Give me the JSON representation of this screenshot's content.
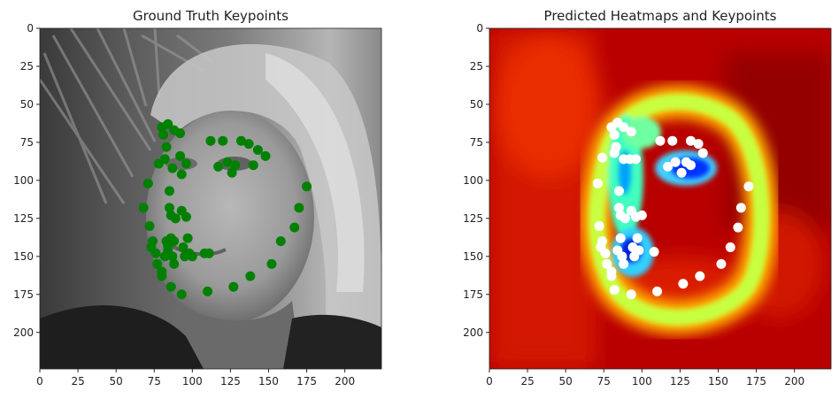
{
  "figure": {
    "titles": [
      "Ground Truth Keypoints",
      "Predicted Heatmaps and Keypoints"
    ]
  },
  "chart_data": [
    {
      "type": "scatter",
      "title": "Ground Truth Keypoints",
      "xlim": [
        0,
        224
      ],
      "ylim": [
        224,
        0
      ],
      "xticks": [
        0,
        25,
        50,
        75,
        100,
        125,
        150,
        175,
        200
      ],
      "yticks": [
        0,
        25,
        50,
        75,
        100,
        125,
        150,
        175,
        200
      ],
      "background": "grayscale face photo",
      "marker_color": "#008000",
      "series": [
        {
          "points": [
            [
              68,
              118
            ],
            [
              71,
              102
            ],
            [
              72,
              130
            ],
            [
              73,
              144
            ],
            [
              74,
              140
            ],
            [
              76,
              148
            ],
            [
              77,
              155
            ],
            [
              78,
              89
            ],
            [
              80,
              160
            ],
            [
              80,
              65
            ],
            [
              81,
              70
            ],
            [
              82,
              86
            ],
            [
              83,
              140
            ],
            [
              84,
              63
            ],
            [
              83,
              78
            ],
            [
              84,
              146
            ],
            [
              85,
              107
            ],
            [
              85,
              118
            ],
            [
              86,
              123
            ],
            [
              86,
              138
            ],
            [
              87,
              92
            ],
            [
              89,
              125
            ],
            [
              88,
              67
            ],
            [
              87,
              150
            ],
            [
              88,
              155
            ],
            [
              92,
              69
            ],
            [
              92,
              84
            ],
            [
              93,
              96
            ],
            [
              93,
              120
            ],
            [
              96,
              124
            ],
            [
              97,
              138
            ],
            [
              98,
              148
            ],
            [
              94,
              144
            ],
            [
              95,
              150
            ],
            [
              100,
              150
            ],
            [
              96,
              89
            ],
            [
              82,
              150
            ],
            [
              84,
              143
            ],
            [
              88,
              140
            ],
            [
              86,
              170
            ],
            [
              80,
              163
            ],
            [
              93,
              175
            ],
            [
              108,
              148
            ],
            [
              111,
              148
            ],
            [
              110,
              173
            ],
            [
              112,
              74
            ],
            [
              117,
              91
            ],
            [
              120,
              74
            ],
            [
              123,
              88
            ],
            [
              126,
              95
            ],
            [
              128,
              90
            ],
            [
              132,
              74
            ],
            [
              137,
              76
            ],
            [
              140,
              90
            ],
            [
              143,
              80
            ],
            [
              148,
              84
            ],
            [
              127,
              170
            ],
            [
              138,
              163
            ],
            [
              152,
              155
            ],
            [
              158,
              140
            ],
            [
              167,
              131
            ],
            [
              170,
              118
            ],
            [
              175,
              104
            ]
          ]
        }
      ]
    },
    {
      "type": "heatmap",
      "title": "Predicted Heatmaps and Keypoints",
      "xlim": [
        0,
        224
      ],
      "ylim": [
        224,
        0
      ],
      "xticks": [
        0,
        25,
        50,
        75,
        100,
        125,
        150,
        175,
        200
      ],
      "yticks": [
        0,
        25,
        50,
        75,
        100,
        125,
        150,
        175,
        200
      ],
      "colormap": "jet",
      "marker_color": "#ffffff",
      "series": [
        {
          "points": [
            [
              71,
              102
            ],
            [
              72,
              130
            ],
            [
              73,
              144
            ],
            [
              74,
              140
            ],
            [
              76,
              148
            ],
            [
              77,
              155
            ],
            [
              74,
              85
            ],
            [
              80,
              160
            ],
            [
              80,
              65
            ],
            [
              82,
              70
            ],
            [
              82,
              82
            ],
            [
              84,
              62
            ],
            [
              83,
              78
            ],
            [
              84,
              146
            ],
            [
              85,
              107
            ],
            [
              85,
              118
            ],
            [
              86,
              123
            ],
            [
              86,
              138
            ],
            [
              88,
              86
            ],
            [
              89,
              125
            ],
            [
              88,
              65
            ],
            [
              87,
              150
            ],
            [
              88,
              155
            ],
            [
              93,
              68
            ],
            [
              92,
              86
            ],
            [
              93,
              120
            ],
            [
              96,
              124
            ],
            [
              97,
              138
            ],
            [
              98,
              146
            ],
            [
              94,
              144
            ],
            [
              95,
              150
            ],
            [
              100,
              123
            ],
            [
              96,
              86
            ],
            [
              80,
              163
            ],
            [
              82,
              172
            ],
            [
              93,
              175
            ],
            [
              108,
              147
            ],
            [
              110,
              173
            ],
            [
              112,
              74
            ],
            [
              117,
              91
            ],
            [
              120,
              74
            ],
            [
              122,
              88
            ],
            [
              126,
              95
            ],
            [
              129,
              88
            ],
            [
              132,
              90
            ],
            [
              132,
              74
            ],
            [
              137,
              76
            ],
            [
              140,
              82
            ],
            [
              127,
              168
            ],
            [
              138,
              163
            ],
            [
              152,
              155
            ],
            [
              158,
              144
            ],
            [
              163,
              131
            ],
            [
              165,
              118
            ],
            [
              170,
              104
            ]
          ]
        }
      ]
    }
  ]
}
